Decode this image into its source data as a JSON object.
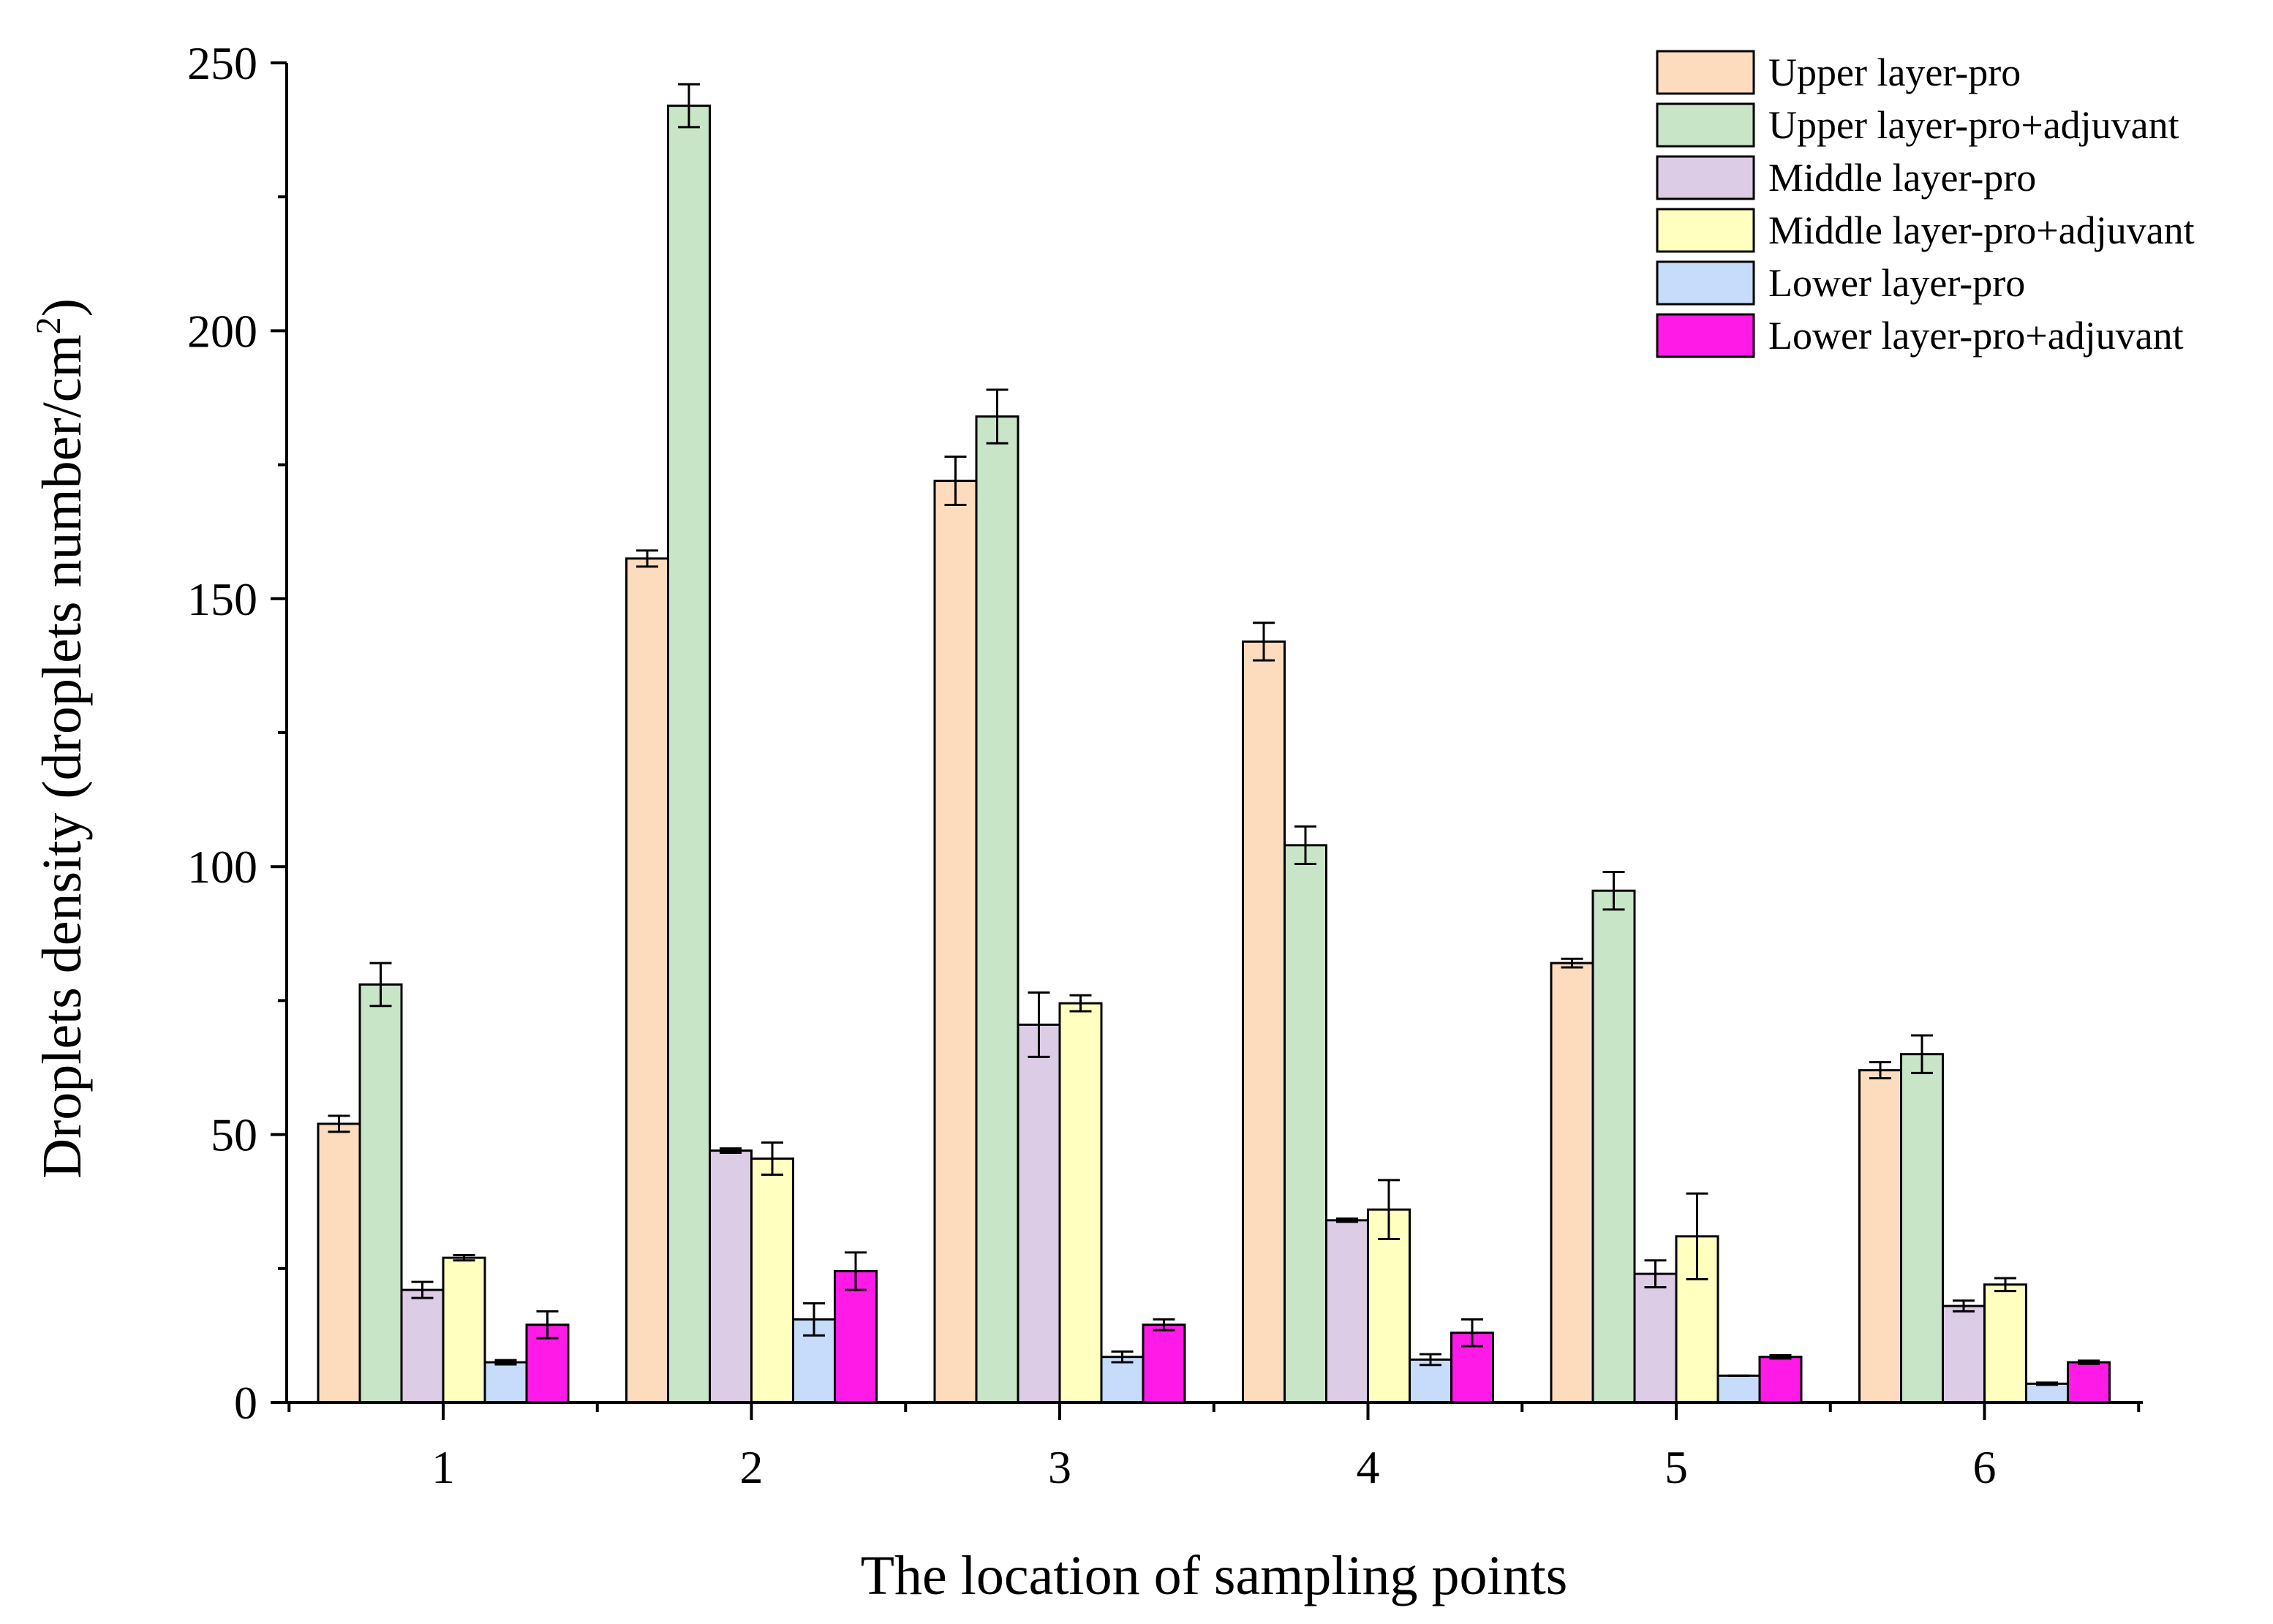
{
  "chart_data": {
    "type": "bar",
    "title": "",
    "xlabel": "The location of sampling points",
    "ylabel_main": "Droplets density (droplets number/cm",
    "ylabel_sup": "2",
    "ylabel_close": ")",
    "ylim": [
      0,
      250
    ],
    "yticks": [
      0,
      50,
      100,
      150,
      200,
      250
    ],
    "yticks_labels": [
      "0",
      "50",
      "100",
      "150",
      "200",
      "250"
    ],
    "categories": [
      "1",
      "2",
      "3",
      "4",
      "5",
      "6"
    ],
    "grid": false,
    "legend_position": "top-right",
    "error_bars": true,
    "series": [
      {
        "name": "Upper layer-pro",
        "color": "#FDDCBE",
        "values": [
          52,
          157.5,
          172,
          142,
          82,
          62
        ],
        "errors": [
          1.5,
          1.5,
          4.5,
          3.5,
          0.8,
          1.5
        ]
      },
      {
        "name": "Upper layer-pro+adjuvant",
        "color": "#C9E5C8",
        "values": [
          78,
          242,
          184,
          104,
          95.5,
          65
        ],
        "errors": [
          4,
          4,
          5,
          3.5,
          3.5,
          3.5
        ]
      },
      {
        "name": "Middle layer-pro",
        "color": "#DCCCE6",
        "values": [
          21,
          47,
          70.5,
          34,
          24,
          18
        ],
        "errors": [
          1.5,
          0.4,
          6,
          0.3,
          2.5,
          1
        ]
      },
      {
        "name": "Middle layer-pro+adjuvant",
        "color": "#FFFFC0",
        "values": [
          27,
          45.5,
          74.5,
          36,
          31,
          22
        ],
        "errors": [
          0.5,
          3,
          1.5,
          5.5,
          8,
          1.2
        ]
      },
      {
        "name": "Lower layer-pro",
        "color": "#C6DCFA",
        "values": [
          7.5,
          15.5,
          8.5,
          8,
          5,
          3.5
        ],
        "errors": [
          0.4,
          3,
          1,
          1,
          0,
          0.2
        ]
      },
      {
        "name": "Lower layer-pro+adjuvant",
        "color": "#FF1AE8",
        "values": [
          14.5,
          24.5,
          14.5,
          13,
          8.5,
          7.5
        ],
        "errors": [
          2.5,
          3.5,
          1,
          2.5,
          0.3,
          0.3
        ]
      }
    ]
  }
}
